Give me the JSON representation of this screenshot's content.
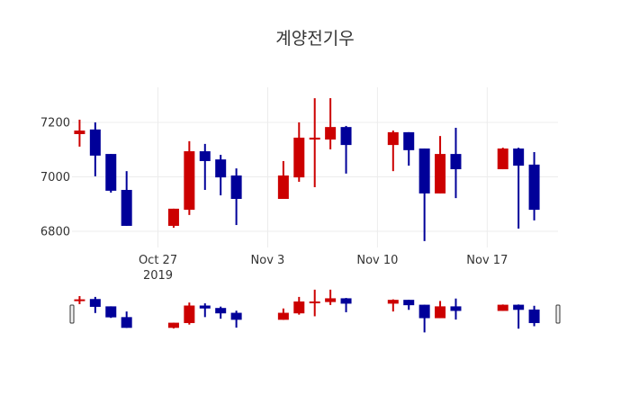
{
  "chart_data": {
    "type": "candlestick",
    "title": "계양전기우",
    "xlabel": "",
    "ylabel": "",
    "ylim": [
      6740,
      7320
    ],
    "y_ticks": [
      6800,
      7000,
      7200
    ],
    "x_ticks": [
      {
        "date": "2019-10-27",
        "label": "Oct 27",
        "sublabel": "2019"
      },
      {
        "date": "2019-11-03",
        "label": "Nov 3",
        "sublabel": ""
      },
      {
        "date": "2019-11-10",
        "label": "Nov 10",
        "sublabel": ""
      },
      {
        "date": "2019-11-17",
        "label": "Nov 17",
        "sublabel": ""
      }
    ],
    "x_range": [
      "2019-10-21",
      "2019-11-21"
    ],
    "grid": true,
    "increasing_color": "#cc0000",
    "decreasing_color": "#000099",
    "range_slider": true,
    "data": [
      {
        "date": "2019-10-22",
        "open": 7157,
        "high": 7210,
        "low": 7111,
        "close": 7170
      },
      {
        "date": "2019-10-23",
        "open": 7174,
        "high": 7200,
        "low": 7002,
        "close": 7078
      },
      {
        "date": "2019-10-24",
        "open": 7084,
        "high": 7084,
        "low": 6942,
        "close": 6949
      },
      {
        "date": "2019-10-25",
        "open": 6952,
        "high": 7021,
        "low": 6820,
        "close": 6820
      },
      {
        "date": "2019-10-28",
        "open": 6820,
        "high": 6883,
        "low": 6813,
        "close": 6883
      },
      {
        "date": "2019-10-29",
        "open": 6879,
        "high": 7131,
        "low": 6860,
        "close": 7094
      },
      {
        "date": "2019-10-30",
        "open": 7094,
        "high": 7121,
        "low": 6952,
        "close": 7058
      },
      {
        "date": "2019-10-31",
        "open": 7064,
        "high": 7081,
        "low": 6932,
        "close": 6998
      },
      {
        "date": "2019-11-01",
        "open": 7005,
        "high": 7031,
        "low": 6823,
        "close": 6919
      },
      {
        "date": "2019-11-04",
        "open": 6919,
        "high": 7058,
        "low": 6919,
        "close": 7005
      },
      {
        "date": "2019-11-05",
        "open": 6998,
        "high": 7200,
        "low": 6982,
        "close": 7144
      },
      {
        "date": "2019-11-06",
        "open": 7137,
        "high": 7289,
        "low": 6962,
        "close": 7144
      },
      {
        "date": "2019-11-07",
        "open": 7137,
        "high": 7289,
        "low": 7101,
        "close": 7183
      },
      {
        "date": "2019-11-08",
        "open": 7183,
        "high": 7187,
        "low": 7012,
        "close": 7117
      },
      {
        "date": "2019-11-11",
        "open": 7117,
        "high": 7170,
        "low": 7021,
        "close": 7164
      },
      {
        "date": "2019-11-12",
        "open": 7164,
        "high": 7164,
        "low": 7041,
        "close": 7098
      },
      {
        "date": "2019-11-13",
        "open": 7104,
        "high": 7104,
        "low": 6764,
        "close": 6939
      },
      {
        "date": "2019-11-14",
        "open": 6939,
        "high": 7150,
        "low": 6939,
        "close": 7084
      },
      {
        "date": "2019-11-15",
        "open": 7084,
        "high": 7180,
        "low": 6922,
        "close": 7028
      },
      {
        "date": "2019-11-18",
        "open": 7028,
        "high": 7107,
        "low": 7028,
        "close": 7104
      },
      {
        "date": "2019-11-19",
        "open": 7104,
        "high": 7107,
        "low": 6810,
        "close": 7041
      },
      {
        "date": "2019-11-20",
        "open": 7045,
        "high": 7091,
        "low": 6840,
        "close": 6879
      }
    ]
  }
}
